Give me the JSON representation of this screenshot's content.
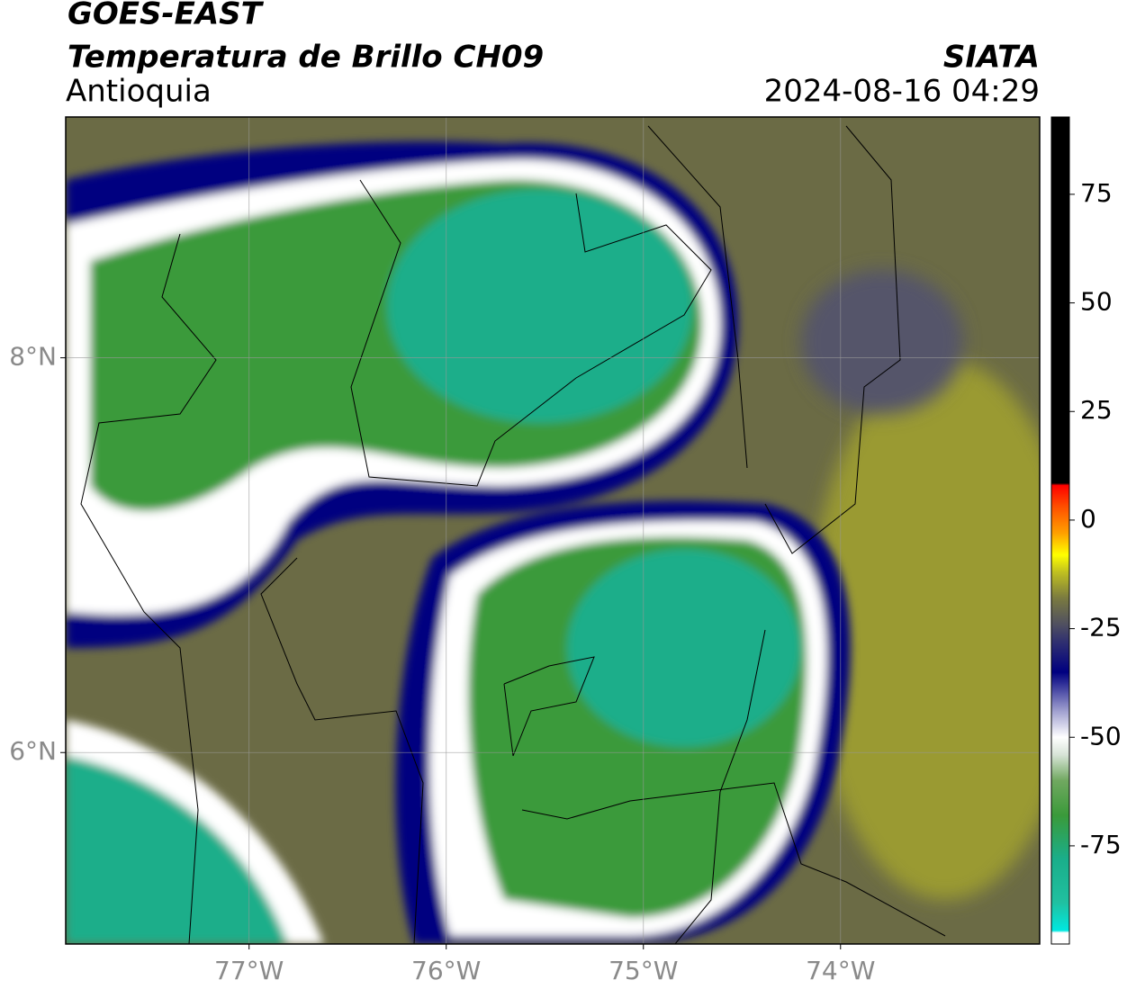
{
  "header": {
    "title": "GOES-EAST",
    "subtitle": "Temperatura de Brillo CH09",
    "region": "Antioquia",
    "source": "SIATA",
    "timestamp": "2024-08-16 04:29"
  },
  "map": {
    "xlim": [
      -77.93,
      -72.99
    ],
    "ylim": [
      5.03,
      9.22
    ],
    "xticks": [
      {
        "value": -77,
        "label": "77°W"
      },
      {
        "value": -76,
        "label": "76°W"
      },
      {
        "value": -75,
        "label": "75°W"
      },
      {
        "value": -74,
        "label": "74°W"
      }
    ],
    "yticks": [
      {
        "value": 8,
        "label": "8°N"
      },
      {
        "value": 6,
        "label": "6°N"
      }
    ],
    "grid": true
  },
  "colorbar": {
    "lim": [
      -97.6,
      92.8
    ],
    "ticks": [
      75,
      50,
      25,
      0,
      -25,
      -50,
      -75
    ],
    "colormap": [
      [
        -97.6,
        "#ffffff"
      ],
      [
        -95,
        "#ffffff"
      ],
      [
        -94.5,
        "#00e8e0"
      ],
      [
        -88,
        "#20c0a0"
      ],
      [
        -78,
        "#1aae8a"
      ],
      [
        -68,
        "#3a9a3a"
      ],
      [
        -60,
        "#70a860"
      ],
      [
        -54,
        "#d8e4d8"
      ],
      [
        -50,
        "#ffffff"
      ],
      [
        -44,
        "#a0a0d0"
      ],
      [
        -35,
        "#000080"
      ],
      [
        -28,
        "#303070"
      ],
      [
        -24,
        "#505060"
      ],
      [
        -18,
        "#7a7a40"
      ],
      [
        -12,
        "#c0c020"
      ],
      [
        -8,
        "#ffff00"
      ],
      [
        -3,
        "#ffa000"
      ],
      [
        3,
        "#ff5000"
      ],
      [
        8,
        "#ff0000"
      ],
      [
        8.5,
        "#000000"
      ],
      [
        92.8,
        "#000000"
      ]
    ]
  }
}
